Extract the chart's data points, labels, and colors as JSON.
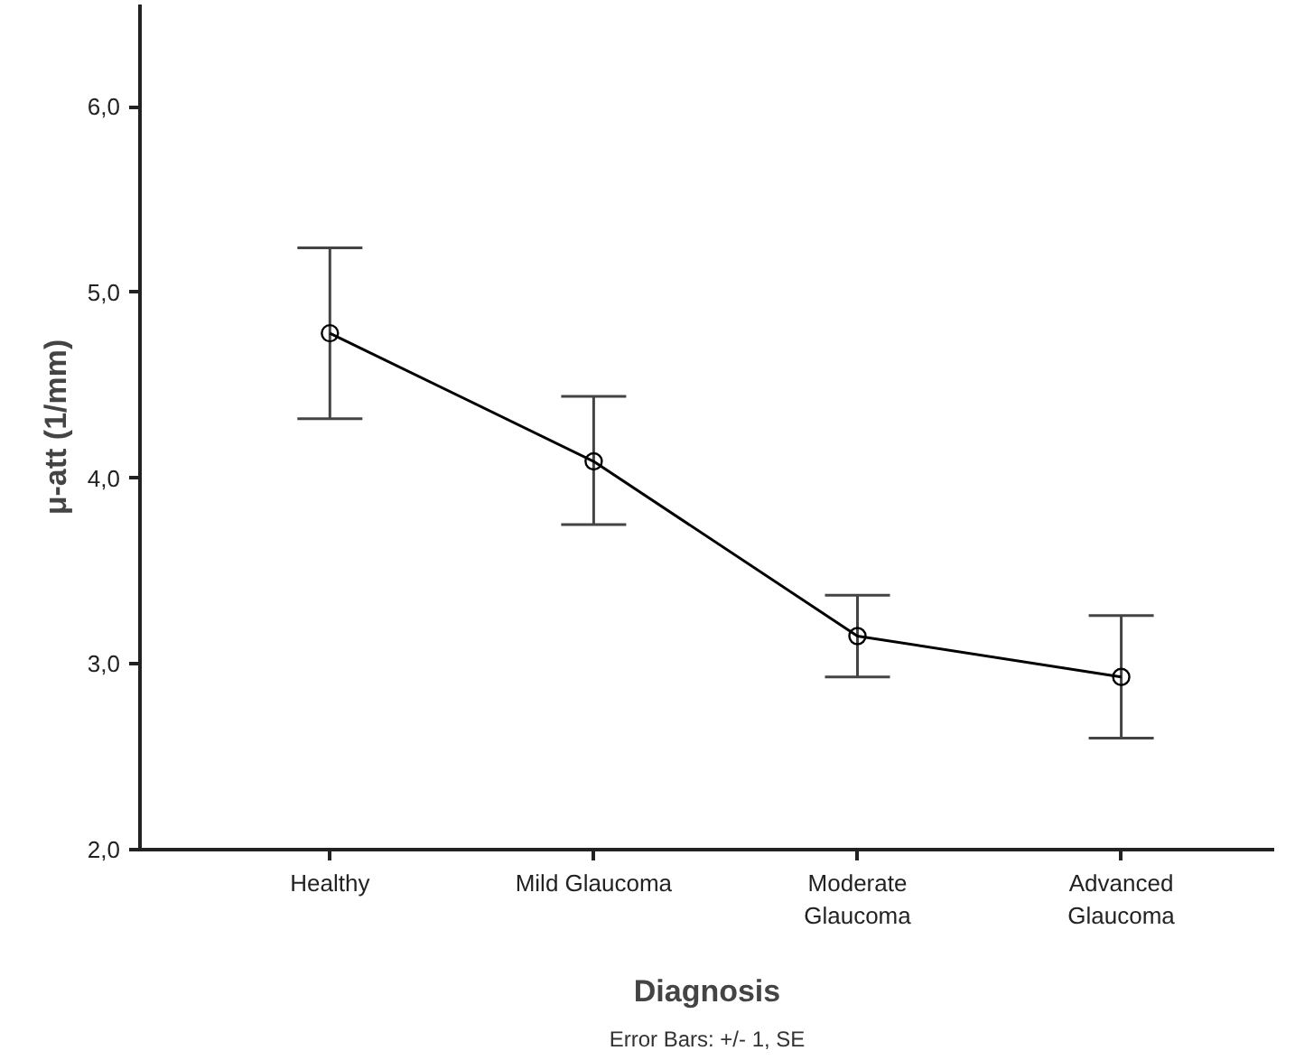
{
  "chart_data": {
    "type": "line",
    "xlabel": "Diagnosis",
    "ylabel": "μ-att (1/mm)",
    "categories": [
      "Healthy",
      "Mild Glaucoma",
      "Moderate Glaucoma",
      "Advanced Glaucoma"
    ],
    "series": [
      {
        "color": "#000000",
        "values": [
          4.78,
          4.09,
          3.15,
          2.93
        ],
        "errors": [
          [
            4.32,
            5.24
          ],
          [
            3.75,
            4.44
          ],
          [
            2.93,
            3.37
          ],
          [
            2.6,
            3.26
          ]
        ]
      }
    ],
    "ylim": [
      2.0,
      6.55
    ],
    "yticks": [
      {
        "value": 2,
        "label": "2,0"
      },
      {
        "value": 3,
        "label": "3,0"
      },
      {
        "value": 4,
        "label": "4,0"
      },
      {
        "value": 5,
        "label": "5,0"
      },
      {
        "value": 6,
        "label": "6,0"
      }
    ],
    "marker": "circle",
    "line_style": "solid",
    "grid": false,
    "annotations": [
      "Error Bars: +/- 1, SE"
    ]
  }
}
